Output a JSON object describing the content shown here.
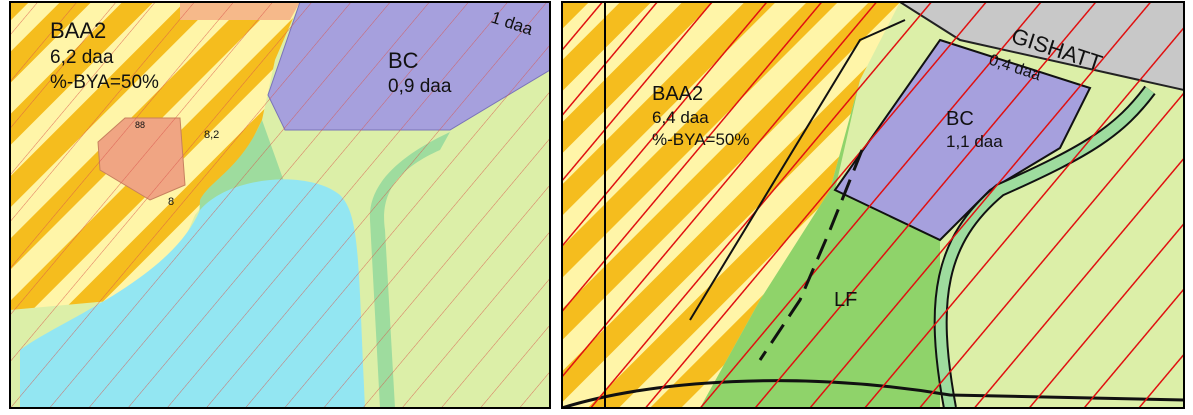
{
  "left_panel": {
    "zone_name": "BAA2",
    "zone_area": "6,2 daa",
    "zone_coverage": "%-BYA=50%",
    "bc_name": "BC",
    "bc_area": "0,9 daa",
    "top_area": "1 daa",
    "building_number": "88",
    "distance_1": "8,2",
    "distance_2": "8"
  },
  "right_panel": {
    "zone_name": "BAA2",
    "zone_area": "6,4 daa",
    "zone_coverage": "%-BYA=50%",
    "bc_name": "BC",
    "bc_area": "1,1 daa",
    "top_name": "GISHATT",
    "top_area": "0,4 daa",
    "lf_name": "LF"
  }
}
